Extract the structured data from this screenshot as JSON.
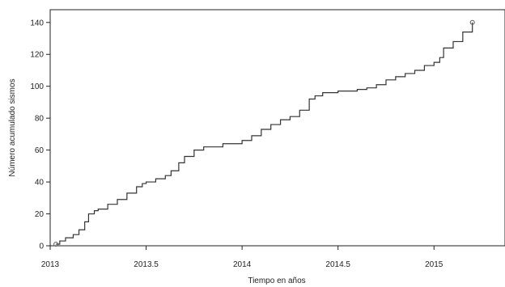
{
  "chart_data": {
    "type": "line",
    "title": "",
    "xlabel": "Tiempo en años",
    "ylabel": "Número acumulado sismos",
    "xlim": [
      2013,
      2015.37
    ],
    "ylim": [
      0,
      148
    ],
    "x_ticks": [
      2013,
      2013.5,
      2014,
      2014.5,
      2015
    ],
    "x_tick_labels": [
      "2013",
      "2013.5",
      "2014",
      "2014.5",
      "2015"
    ],
    "y_ticks": [
      0,
      20,
      40,
      60,
      80,
      100,
      120,
      140
    ],
    "y_tick_labels": [
      "0",
      "20",
      "40",
      "60",
      "80",
      "100",
      "120",
      "140"
    ],
    "grid": false,
    "series": [
      {
        "x": [
          2013.03,
          2013.05,
          2013.08,
          2013.12,
          2013.15,
          2013.18,
          2013.2,
          2013.23,
          2013.25,
          2013.3,
          2013.35,
          2013.4,
          2013.45,
          2013.48,
          2013.5,
          2013.55,
          2013.6,
          2013.63,
          2013.67,
          2013.7,
          2013.75,
          2013.8,
          2013.9,
          2014.0,
          2014.05,
          2014.1,
          2014.15,
          2014.2,
          2014.25,
          2014.3,
          2014.35,
          2014.38,
          2014.42,
          2014.5,
          2014.6,
          2014.65,
          2014.7,
          2014.75,
          2014.8,
          2014.85,
          2014.9,
          2014.95,
          2015.0,
          2015.03,
          2015.05,
          2015.1,
          2015.15,
          2015.2
        ],
        "y": [
          1,
          3,
          5,
          7,
          10,
          15,
          20,
          22,
          23,
          26,
          29,
          33,
          37,
          39,
          40,
          42,
          44,
          47,
          52,
          56,
          60,
          62,
          64,
          66,
          69,
          73,
          76,
          79,
          81,
          85,
          92,
          94,
          96,
          97,
          98,
          99,
          101,
          104,
          106,
          108,
          110,
          113,
          115,
          118,
          124,
          128,
          134,
          140
        ]
      }
    ]
  }
}
